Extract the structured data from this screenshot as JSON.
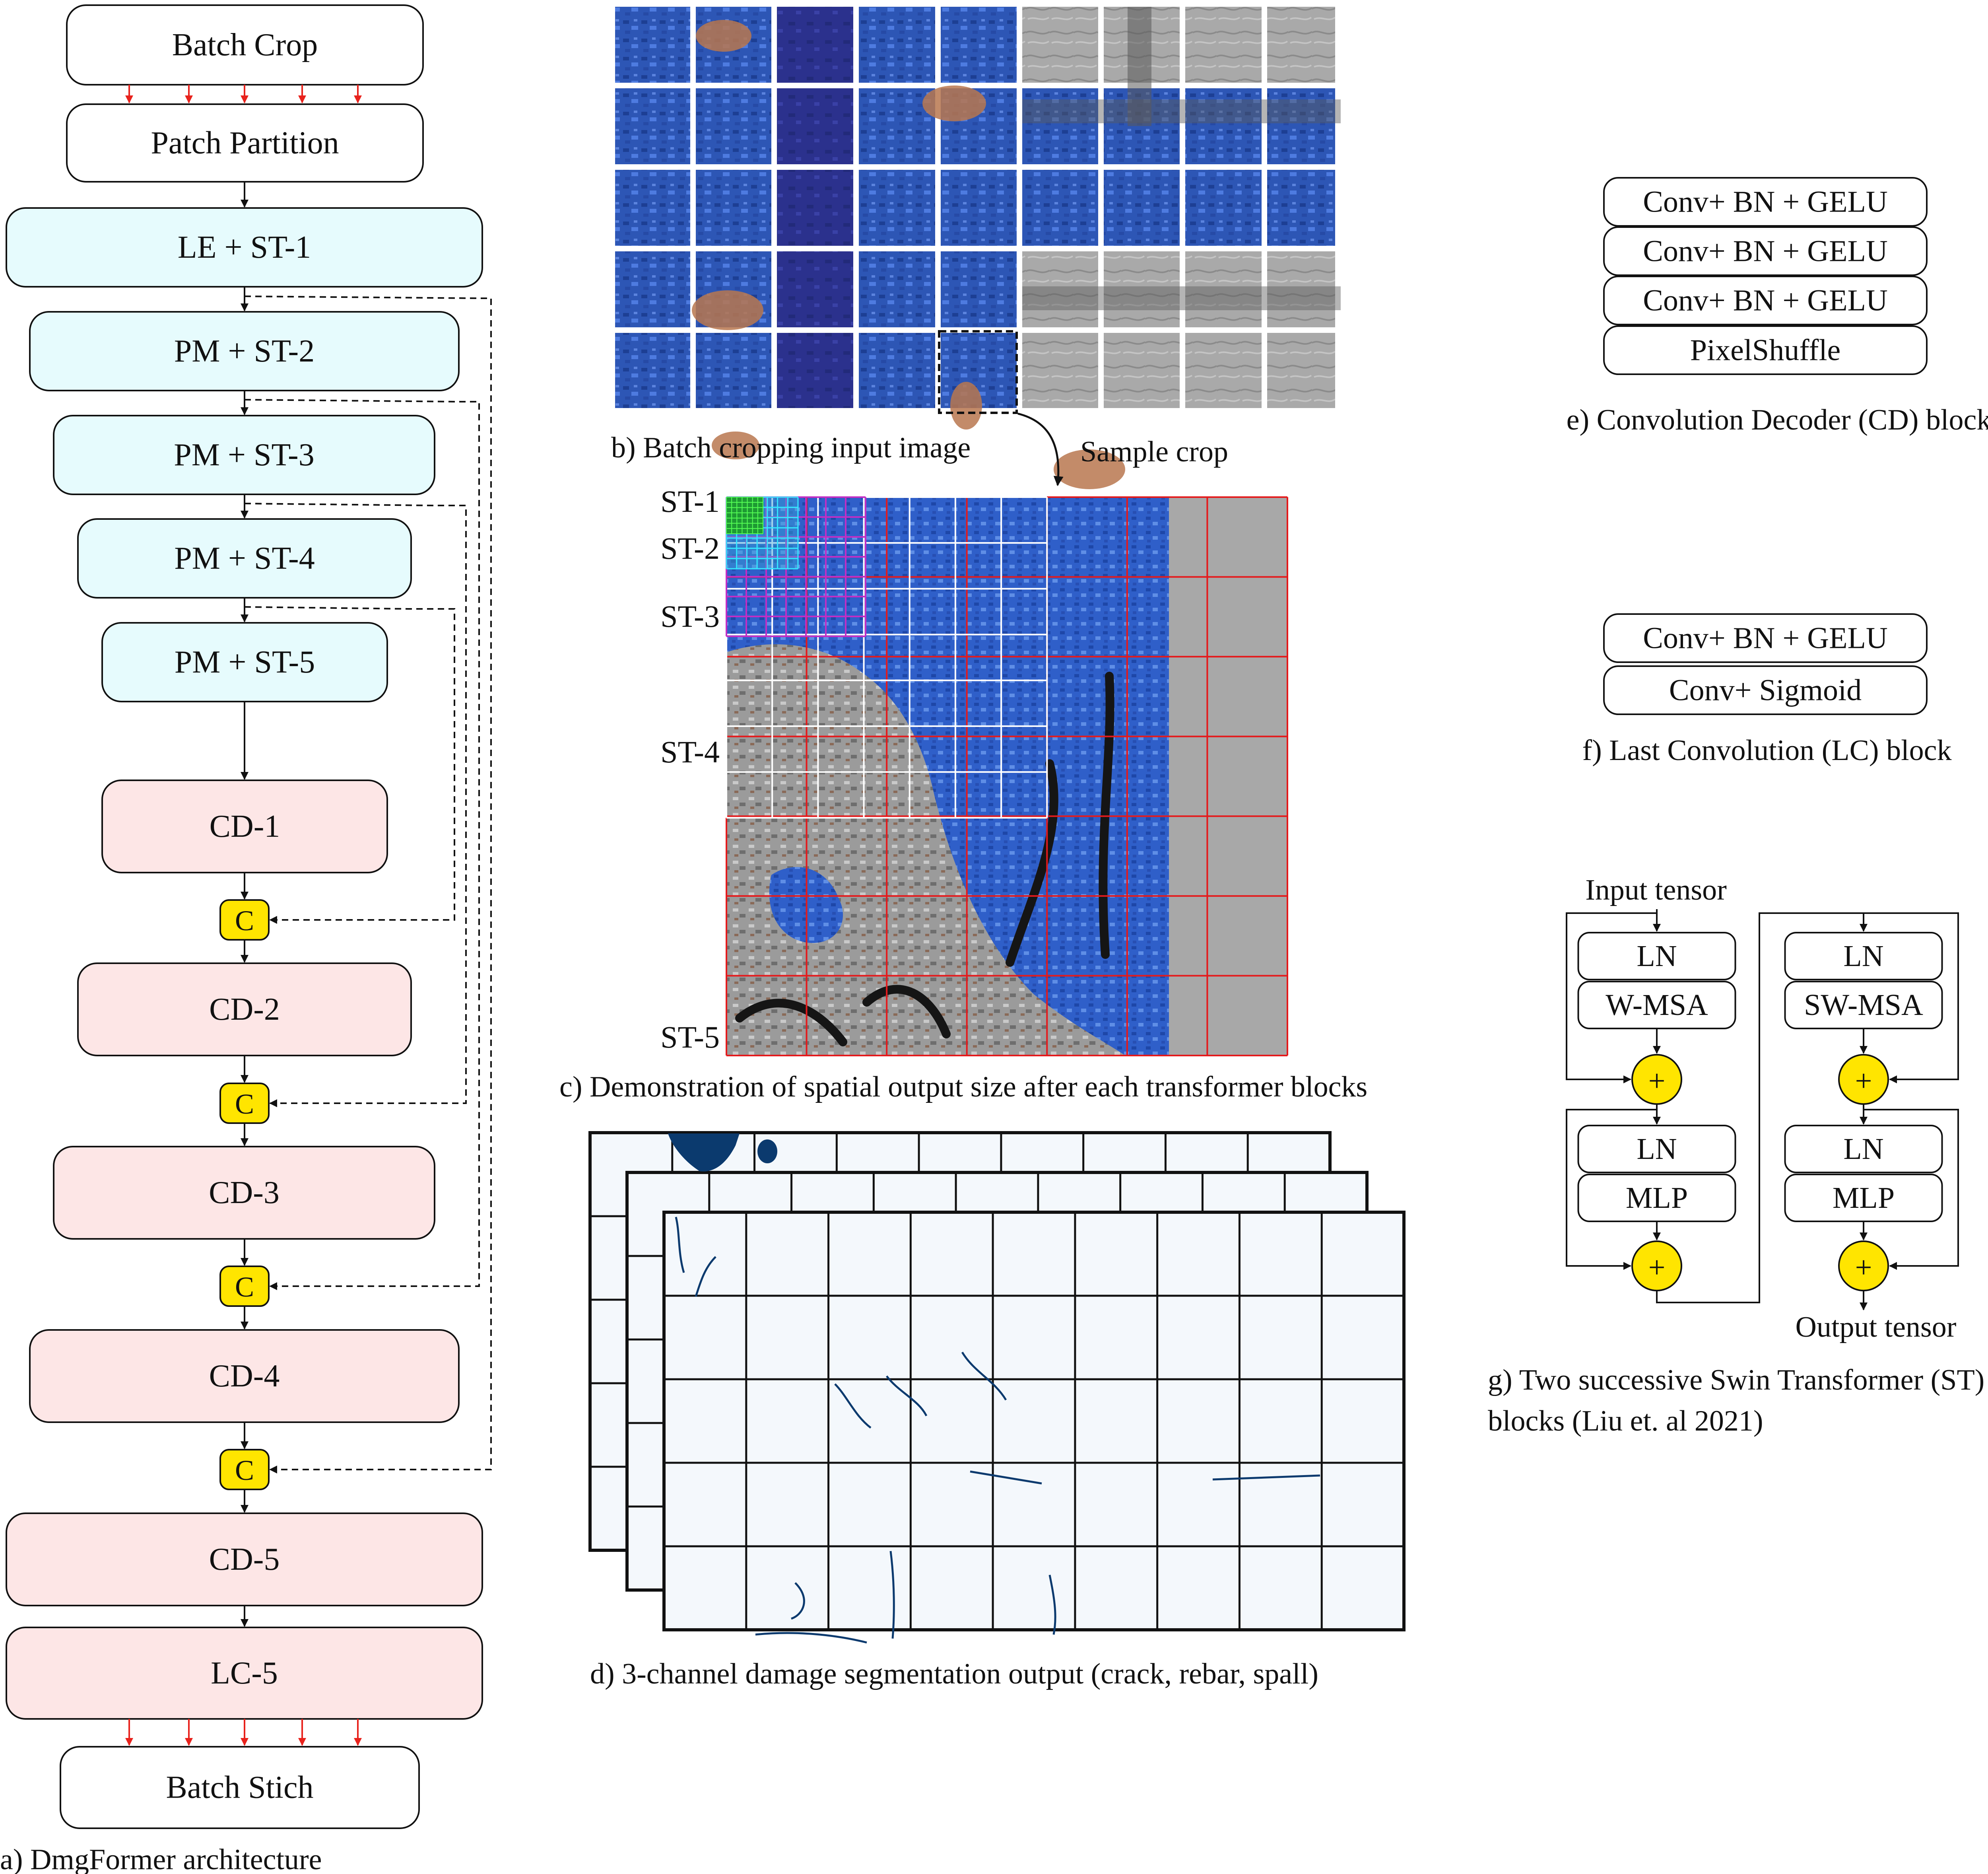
{
  "architecture": {
    "stages": [
      {
        "label": "Batch Crop"
      },
      {
        "label": "Patch Partition"
      },
      {
        "label": "LE + ST-1"
      },
      {
        "label": "PM + ST-2"
      },
      {
        "label": "PM + ST-3"
      },
      {
        "label": "PM + ST-4"
      },
      {
        "label": "PM + ST-5"
      },
      {
        "label": "CD-1"
      },
      {
        "label": "CD-2"
      },
      {
        "label": "CD-3"
      },
      {
        "label": "CD-4"
      },
      {
        "label": "CD-5"
      },
      {
        "label": "LC-5"
      },
      {
        "label": "Batch Stich"
      }
    ],
    "concat_label": "C",
    "caption": "a) DmgFormer architecture"
  },
  "batch_crop": {
    "caption": "b) Batch cropping input image",
    "sample_label": "Sample crop"
  },
  "spatial_demo": {
    "levels": [
      "ST-1",
      "ST-2",
      "ST-3",
      "ST-4",
      "ST-5"
    ],
    "caption": "c) Demonstration of spatial output size after each transformer blocks"
  },
  "segmentation": {
    "caption": "d) 3-channel damage segmentation output (crack, rebar, spall)"
  },
  "cd_block": {
    "layers": [
      "Conv+ BN + GELU",
      "Conv+ BN + GELU",
      "Conv+ BN + GELU",
      "PixelShuffle"
    ],
    "caption": "e) Convolution Decoder (CD) block"
  },
  "lc_block": {
    "layers": [
      "Conv+ BN + GELU",
      "Conv+ Sigmoid"
    ],
    "caption": "f) Last Convolution (LC) block"
  },
  "swin": {
    "input_label": "Input tensor",
    "output_label": "Output tensor",
    "block1": [
      "LN",
      "W-MSA",
      "LN",
      "MLP"
    ],
    "block2": [
      "LN",
      "SW-MSA",
      "LN",
      "MLP"
    ],
    "add_symbol": "+",
    "caption_line1": "g) Two successive Swin Transformer (ST)",
    "caption_line2": "blocks (Liu et. al 2021)"
  },
  "colors": {
    "io_box": "#ffffff",
    "encoder_box": "#e6fbfd",
    "decoder_box": "#fde6e6",
    "concat": "#ffe500",
    "plus": "#ffe500",
    "red_arrow": "#e8221c",
    "concrete_blue": "#2d56b5",
    "concrete_gray": "#a9a9a9",
    "grid_red": "#e41a1c",
    "seg_bg": "#f4f8fc",
    "seg_ink": "#0b3a6e"
  }
}
